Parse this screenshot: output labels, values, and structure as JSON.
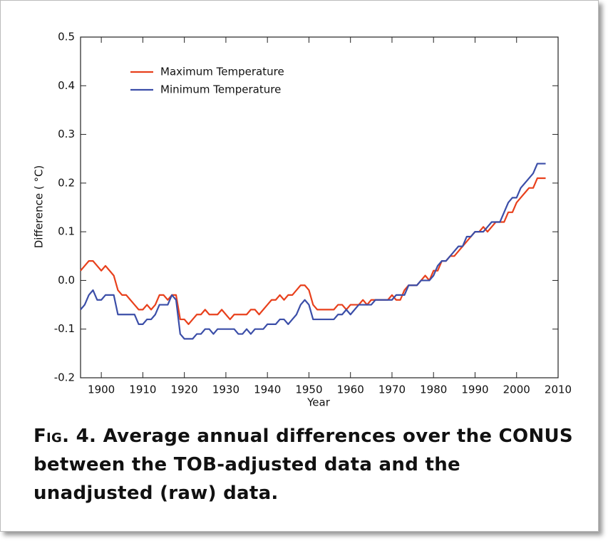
{
  "chart_data": {
    "type": "line",
    "y_label": "Difference ( °C)",
    "x_label": "Year",
    "caption_lead": "Fig. 4.",
    "caption": "Average annual differences over the CONUS between the TOB-adjusted data and the unadjusted (raw) data.",
    "x": [
      1895,
      1896,
      1897,
      1898,
      1899,
      1900,
      1901,
      1902,
      1903,
      1904,
      1905,
      1906,
      1907,
      1908,
      1909,
      1910,
      1911,
      1912,
      1913,
      1914,
      1915,
      1916,
      1917,
      1918,
      1919,
      1920,
      1921,
      1922,
      1923,
      1924,
      1925,
      1926,
      1927,
      1928,
      1929,
      1930,
      1931,
      1932,
      1933,
      1934,
      1935,
      1936,
      1937,
      1938,
      1939,
      1940,
      1941,
      1942,
      1943,
      1944,
      1945,
      1946,
      1947,
      1948,
      1949,
      1950,
      1951,
      1952,
      1953,
      1954,
      1955,
      1956,
      1957,
      1958,
      1959,
      1960,
      1961,
      1962,
      1963,
      1964,
      1965,
      1966,
      1967,
      1968,
      1969,
      1970,
      1971,
      1972,
      1973,
      1974,
      1975,
      1976,
      1977,
      1978,
      1979,
      1980,
      1981,
      1982,
      1983,
      1984,
      1985,
      1986,
      1987,
      1988,
      1989,
      1990,
      1991,
      1992,
      1993,
      1994,
      1995,
      1996,
      1997,
      1998,
      1999,
      2000,
      2001,
      2002,
      2003,
      2004,
      2005,
      2006,
      2007
    ],
    "series": [
      {
        "name": "Maximum Temperature",
        "color": "#e8401c",
        "values": [
          0.02,
          0.03,
          0.04,
          0.04,
          0.03,
          0.02,
          0.03,
          0.02,
          0.01,
          -0.02,
          -0.03,
          -0.03,
          -0.04,
          -0.05,
          -0.06,
          -0.06,
          -0.05,
          -0.06,
          -0.05,
          -0.03,
          -0.03,
          -0.04,
          -0.03,
          -0.03,
          -0.08,
          -0.08,
          -0.09,
          -0.08,
          -0.07,
          -0.07,
          -0.06,
          -0.07,
          -0.07,
          -0.07,
          -0.06,
          -0.07,
          -0.08,
          -0.07,
          -0.07,
          -0.07,
          -0.07,
          -0.06,
          -0.06,
          -0.07,
          -0.06,
          -0.05,
          -0.04,
          -0.04,
          -0.03,
          -0.04,
          -0.03,
          -0.03,
          -0.02,
          -0.01,
          -0.01,
          -0.02,
          -0.05,
          -0.06,
          -0.06,
          -0.06,
          -0.06,
          -0.06,
          -0.05,
          -0.05,
          -0.06,
          -0.05,
          -0.05,
          -0.05,
          -0.04,
          -0.05,
          -0.04,
          -0.04,
          -0.04,
          -0.04,
          -0.04,
          -0.03,
          -0.04,
          -0.04,
          -0.02,
          -0.01,
          -0.01,
          -0.01,
          0,
          0.01,
          0,
          0.02,
          0.02,
          0.04,
          0.04,
          0.05,
          0.05,
          0.06,
          0.07,
          0.08,
          0.09,
          0.1,
          0.1,
          0.11,
          0.1,
          0.11,
          0.12,
          0.12,
          0.12,
          0.14,
          0.14,
          0.16,
          0.17,
          0.18,
          0.19,
          0.19,
          0.21,
          0.21,
          0.21
        ]
      },
      {
        "name": "Minimum Temperature",
        "color": "#3b4ea8",
        "values": [
          -0.06,
          -0.05,
          -0.03,
          -0.02,
          -0.04,
          -0.04,
          -0.03,
          -0.03,
          -0.03,
          -0.07,
          -0.07,
          -0.07,
          -0.07,
          -0.07,
          -0.09,
          -0.09,
          -0.08,
          -0.08,
          -0.07,
          -0.05,
          -0.05,
          -0.05,
          -0.03,
          -0.04,
          -0.11,
          -0.12,
          -0.12,
          -0.12,
          -0.11,
          -0.11,
          -0.1,
          -0.1,
          -0.11,
          -0.1,
          -0.1,
          -0.1,
          -0.1,
          -0.1,
          -0.11,
          -0.11,
          -0.1,
          -0.11,
          -0.1,
          -0.1,
          -0.1,
          -0.09,
          -0.09,
          -0.09,
          -0.08,
          -0.08,
          -0.09,
          -0.08,
          -0.07,
          -0.05,
          -0.04,
          -0.05,
          -0.08,
          -0.08,
          -0.08,
          -0.08,
          -0.08,
          -0.08,
          -0.07,
          -0.07,
          -0.06,
          -0.07,
          -0.06,
          -0.05,
          -0.05,
          -0.05,
          -0.05,
          -0.04,
          -0.04,
          -0.04,
          -0.04,
          -0.04,
          -0.03,
          -0.03,
          -0.03,
          -0.01,
          -0.01,
          -0.01,
          0,
          0,
          0,
          0.01,
          0.03,
          0.04,
          0.04,
          0.05,
          0.06,
          0.07,
          0.07,
          0.09,
          0.09,
          0.1,
          0.1,
          0.1,
          0.11,
          0.12,
          0.12,
          0.12,
          0.14,
          0.16,
          0.17,
          0.17,
          0.19,
          0.2,
          0.21,
          0.22,
          0.24,
          0.24,
          0.24
        ]
      }
    ],
    "xlim": [
      1895,
      2010
    ],
    "ylim": [
      -0.2,
      0.5
    ],
    "xticks": [
      1900,
      1910,
      1920,
      1930,
      1940,
      1950,
      1960,
      1970,
      1980,
      1990,
      2000,
      2010
    ],
    "yticks": [
      -0.2,
      -0.1,
      {
        "value": 0,
        "label": "0.0"
      },
      0.1,
      0.2,
      0.3,
      0.4,
      0.5
    ],
    "legend": "upper left"
  }
}
